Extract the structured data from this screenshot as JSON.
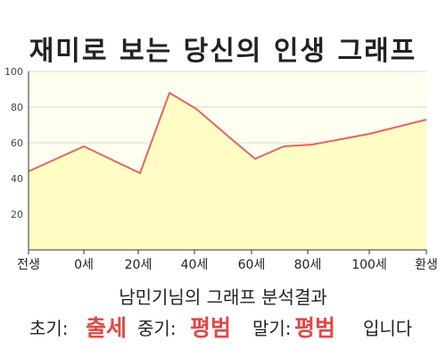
{
  "title": "재미로 보는 당신의 인생 그래프",
  "colors": {
    "line": "#e06666",
    "area": "#fffcc4",
    "plot_bg": "#fffff0",
    "grid": "#d8d8d8",
    "result_highlight": "#e34848"
  },
  "chart_data": {
    "type": "area",
    "xticks": [
      "전생",
      "0세",
      "20세",
      "40세",
      "60세",
      "80세",
      "100세",
      "환생"
    ],
    "yticks": [
      "20",
      "40",
      "60",
      "80",
      "100"
    ],
    "ylim": [
      0,
      100
    ],
    "grid": true,
    "points": [
      {
        "x": "전생",
        "y": 44
      },
      {
        "x": "0세",
        "y": 58
      },
      {
        "x": "20세",
        "y": 43
      },
      {
        "x": "~32세",
        "y": 88
      },
      {
        "x": "~40세",
        "y": 79
      },
      {
        "x": "~52세",
        "y": 64
      },
      {
        "x": "60세",
        "y": 51
      },
      {
        "x": "~70세",
        "y": 58
      },
      {
        "x": "~80세",
        "y": 59
      },
      {
        "x": "100세",
        "y": 65
      },
      {
        "x": "환생",
        "y": 73
      }
    ]
  },
  "result": {
    "heading": "남민기님의 그래프 분석결과",
    "early_label": "초기:",
    "early_value": "출세",
    "middle_label": "중기:",
    "middle_value": "평범",
    "late_label": "말기:",
    "late_value": "평범",
    "ending": "입니다"
  }
}
